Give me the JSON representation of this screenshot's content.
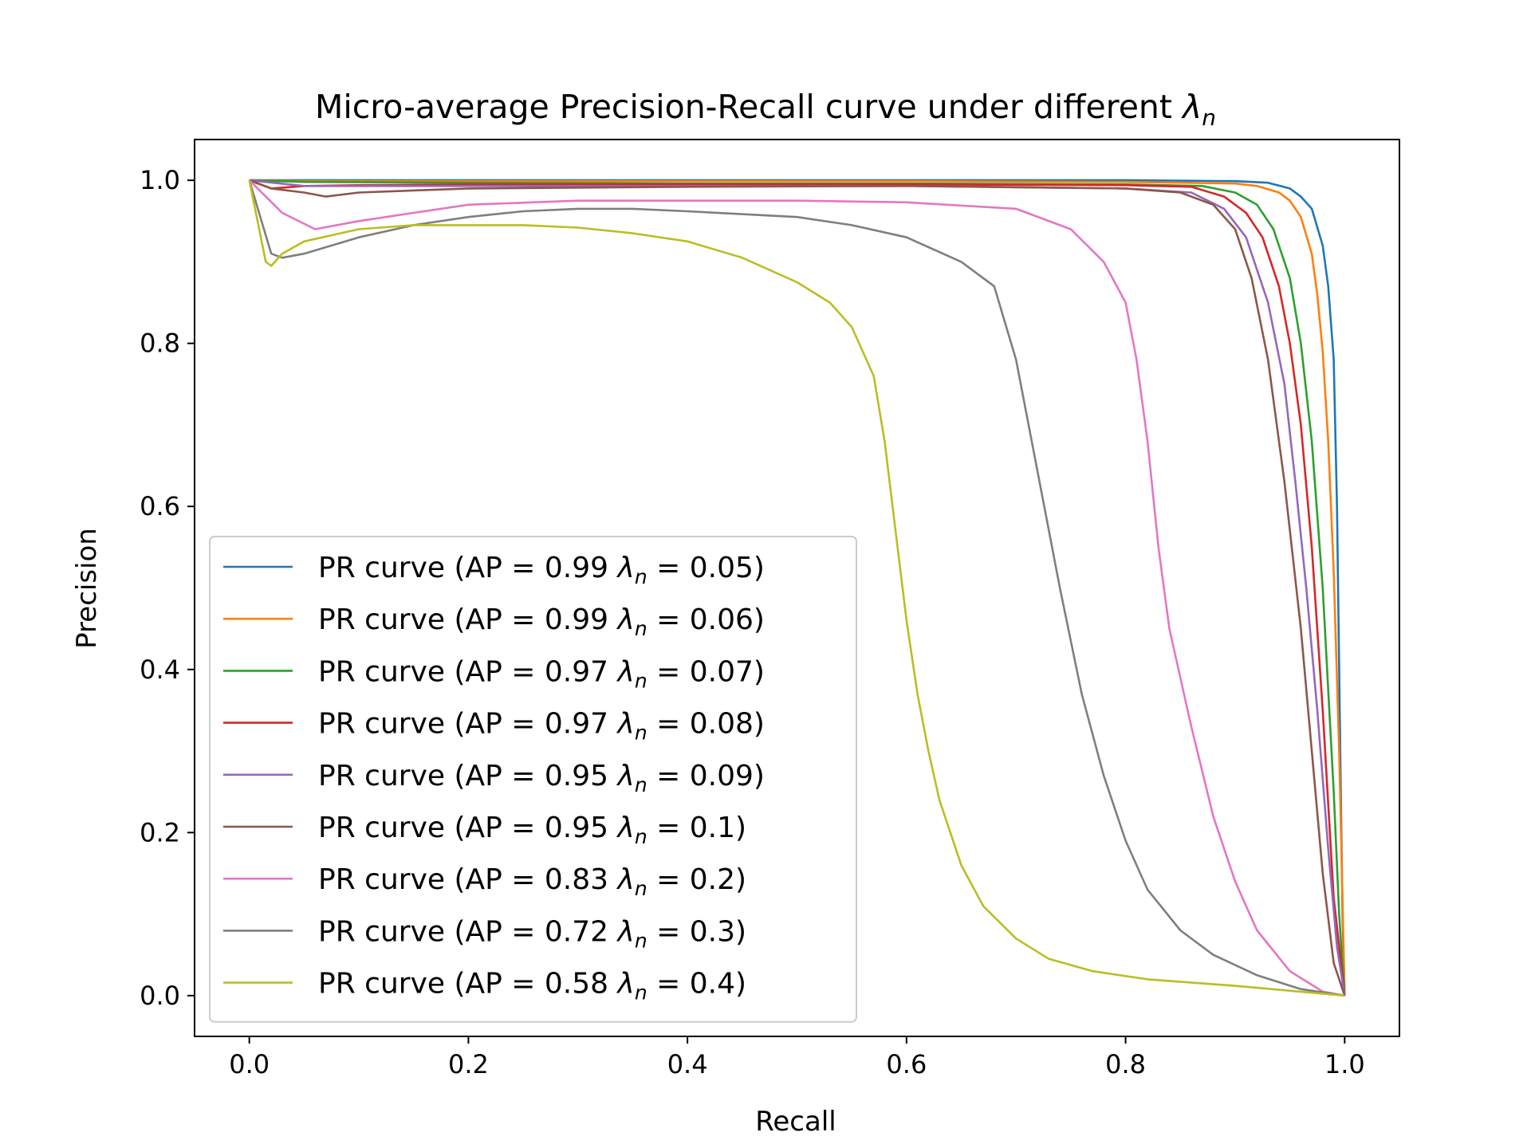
{
  "chart_data": {
    "type": "line",
    "title": "Micro-average Precision-Recall curve under different ",
    "title_symbol": "λ",
    "title_symbol_sub": "n",
    "xlabel": "Recall",
    "ylabel": "Precision",
    "xlim": [
      -0.05,
      1.05
    ],
    "ylim": [
      -0.05,
      1.05
    ],
    "xticks": [
      "0.0",
      "0.2",
      "0.4",
      "0.6",
      "0.8",
      "1.0"
    ],
    "yticks": [
      "0.0",
      "0.2",
      "0.4",
      "0.6",
      "0.8",
      "1.0"
    ],
    "grid": false,
    "legend_position": "lower-left",
    "series": [
      {
        "name": "PR curve (AP = 0.99 λn = 0.05)",
        "label": {
          "prefix": "PR curve (AP = 0.99 ",
          "symbol": "λ",
          "sub": "n",
          "suffix": " = 0.05)"
        },
        "color": "#1f77b4",
        "x": [
          0,
          0.05,
          0.2,
          0.4,
          0.6,
          0.8,
          0.9,
          0.93,
          0.95,
          0.96,
          0.97,
          0.98,
          0.985,
          0.99,
          0.993,
          0.996,
          0.998,
          1.0
        ],
        "y": [
          1.0,
          1.0,
          1.0,
          1.0,
          1.0,
          1.0,
          0.999,
          0.997,
          0.99,
          0.98,
          0.965,
          0.92,
          0.87,
          0.78,
          0.6,
          0.3,
          0.1,
          0.0
        ]
      },
      {
        "name": "PR curve (AP = 0.99 λn = 0.06)",
        "label": {
          "prefix": "PR curve (AP = 0.99 ",
          "symbol": "λ",
          "sub": "n",
          "suffix": " = 0.06)"
        },
        "color": "#ff7f0e",
        "x": [
          0,
          0.05,
          0.2,
          0.4,
          0.6,
          0.8,
          0.9,
          0.92,
          0.94,
          0.95,
          0.96,
          0.97,
          0.975,
          0.98,
          0.985,
          0.99,
          0.995,
          0.998,
          1.0
        ],
        "y": [
          1.0,
          0.999,
          0.999,
          0.999,
          0.999,
          0.998,
          0.996,
          0.993,
          0.985,
          0.975,
          0.955,
          0.91,
          0.86,
          0.79,
          0.68,
          0.52,
          0.3,
          0.12,
          0.0
        ]
      },
      {
        "name": "PR curve (AP = 0.97 λn = 0.07)",
        "label": {
          "prefix": "PR curve (AP = 0.97 ",
          "symbol": "λ",
          "sub": "n",
          "suffix": " = 0.07)"
        },
        "color": "#2ca02c",
        "x": [
          0,
          0.05,
          0.2,
          0.4,
          0.6,
          0.8,
          0.87,
          0.9,
          0.92,
          0.935,
          0.95,
          0.96,
          0.97,
          0.98,
          0.99,
          0.995,
          1.0
        ],
        "y": [
          1.0,
          0.998,
          0.997,
          0.996,
          0.996,
          0.995,
          0.993,
          0.985,
          0.97,
          0.94,
          0.88,
          0.8,
          0.68,
          0.5,
          0.25,
          0.1,
          0.0
        ]
      },
      {
        "name": "PR curve (AP = 0.97 λn = 0.08)",
        "label": {
          "prefix": "PR curve (AP = 0.97 ",
          "symbol": "λ",
          "sub": "n",
          "suffix": " = 0.08)"
        },
        "color": "#d62728",
        "x": [
          0,
          0.02,
          0.05,
          0.1,
          0.2,
          0.4,
          0.6,
          0.8,
          0.86,
          0.89,
          0.91,
          0.925,
          0.94,
          0.95,
          0.96,
          0.97,
          0.98,
          0.99,
          1.0
        ],
        "y": [
          1.0,
          0.99,
          0.993,
          0.994,
          0.995,
          0.995,
          0.995,
          0.994,
          0.992,
          0.98,
          0.96,
          0.93,
          0.87,
          0.8,
          0.7,
          0.55,
          0.35,
          0.12,
          0.0
        ]
      },
      {
        "name": "PR curve (AP = 0.95 λn = 0.09)",
        "label": {
          "prefix": "PR curve (AP = 0.95 ",
          "symbol": "λ",
          "sub": "n",
          "suffix": " = 0.09)"
        },
        "color": "#9467bd",
        "x": [
          0,
          0.05,
          0.2,
          0.4,
          0.6,
          0.8,
          0.86,
          0.89,
          0.91,
          0.93,
          0.945,
          0.955,
          0.965,
          0.975,
          0.985,
          0.993,
          1.0
        ],
        "y": [
          1.0,
          0.993,
          0.993,
          0.993,
          0.993,
          0.99,
          0.985,
          0.965,
          0.93,
          0.85,
          0.75,
          0.63,
          0.5,
          0.35,
          0.18,
          0.06,
          0.0
        ]
      },
      {
        "name": "PR curve (AP = 0.95 λn = 0.1)",
        "label": {
          "prefix": "PR curve (AP = 0.95 ",
          "symbol": "λ",
          "sub": "n",
          "suffix": " = 0.1)"
        },
        "color": "#8c564b",
        "x": [
          0,
          0.02,
          0.05,
          0.07,
          0.1,
          0.2,
          0.4,
          0.6,
          0.8,
          0.85,
          0.88,
          0.9,
          0.915,
          0.93,
          0.945,
          0.96,
          0.97,
          0.98,
          0.99,
          1.0
        ],
        "y": [
          1.0,
          0.99,
          0.985,
          0.98,
          0.985,
          0.99,
          0.992,
          0.993,
          0.99,
          0.985,
          0.97,
          0.94,
          0.88,
          0.78,
          0.63,
          0.45,
          0.3,
          0.15,
          0.04,
          0.0
        ]
      },
      {
        "name": "PR curve (AP = 0.83 λn = 0.2)",
        "label": {
          "prefix": "PR curve (AP = 0.83 ",
          "symbol": "λ",
          "sub": "n",
          "suffix": " = 0.2)"
        },
        "color": "#e377c2",
        "x": [
          0,
          0.03,
          0.06,
          0.1,
          0.15,
          0.2,
          0.3,
          0.4,
          0.5,
          0.6,
          0.7,
          0.75,
          0.78,
          0.8,
          0.81,
          0.82,
          0.83,
          0.84,
          0.86,
          0.88,
          0.9,
          0.92,
          0.95,
          0.98,
          1.0
        ],
        "y": [
          1.0,
          0.96,
          0.94,
          0.95,
          0.96,
          0.97,
          0.975,
          0.975,
          0.975,
          0.973,
          0.965,
          0.94,
          0.9,
          0.85,
          0.78,
          0.68,
          0.55,
          0.45,
          0.33,
          0.22,
          0.14,
          0.08,
          0.03,
          0.005,
          0.0
        ]
      },
      {
        "name": "PR curve (AP = 0.72 λn = 0.3)",
        "label": {
          "prefix": "PR curve (AP = 0.72 ",
          "symbol": "λ",
          "sub": "n",
          "suffix": " = 0.3)"
        },
        "color": "#7f7f7f",
        "x": [
          0,
          0.02,
          0.03,
          0.05,
          0.1,
          0.15,
          0.2,
          0.25,
          0.3,
          0.35,
          0.4,
          0.5,
          0.55,
          0.6,
          0.65,
          0.68,
          0.7,
          0.72,
          0.74,
          0.76,
          0.78,
          0.8,
          0.82,
          0.85,
          0.88,
          0.92,
          0.96,
          0.99,
          1.0
        ],
        "y": [
          1.0,
          0.91,
          0.905,
          0.91,
          0.93,
          0.945,
          0.955,
          0.962,
          0.965,
          0.965,
          0.962,
          0.955,
          0.945,
          0.93,
          0.9,
          0.87,
          0.78,
          0.64,
          0.5,
          0.37,
          0.27,
          0.19,
          0.13,
          0.08,
          0.05,
          0.025,
          0.008,
          0.002,
          0.0
        ]
      },
      {
        "name": "PR curve (AP = 0.58 λn = 0.4)",
        "label": {
          "prefix": "PR curve (AP = 0.58 ",
          "symbol": "λ",
          "sub": "n",
          "suffix": " = 0.4)"
        },
        "color": "#bcbd22",
        "x": [
          0,
          0.015,
          0.02,
          0.03,
          0.05,
          0.1,
          0.15,
          0.2,
          0.25,
          0.3,
          0.35,
          0.4,
          0.45,
          0.5,
          0.53,
          0.55,
          0.57,
          0.58,
          0.59,
          0.6,
          0.61,
          0.62,
          0.63,
          0.65,
          0.67,
          0.7,
          0.73,
          0.77,
          0.82,
          0.9,
          1.0
        ],
        "y": [
          1.0,
          0.9,
          0.895,
          0.91,
          0.925,
          0.94,
          0.945,
          0.945,
          0.945,
          0.942,
          0.935,
          0.925,
          0.905,
          0.875,
          0.85,
          0.82,
          0.76,
          0.68,
          0.57,
          0.46,
          0.37,
          0.3,
          0.24,
          0.16,
          0.11,
          0.07,
          0.045,
          0.03,
          0.02,
          0.012,
          0.0
        ]
      }
    ]
  }
}
